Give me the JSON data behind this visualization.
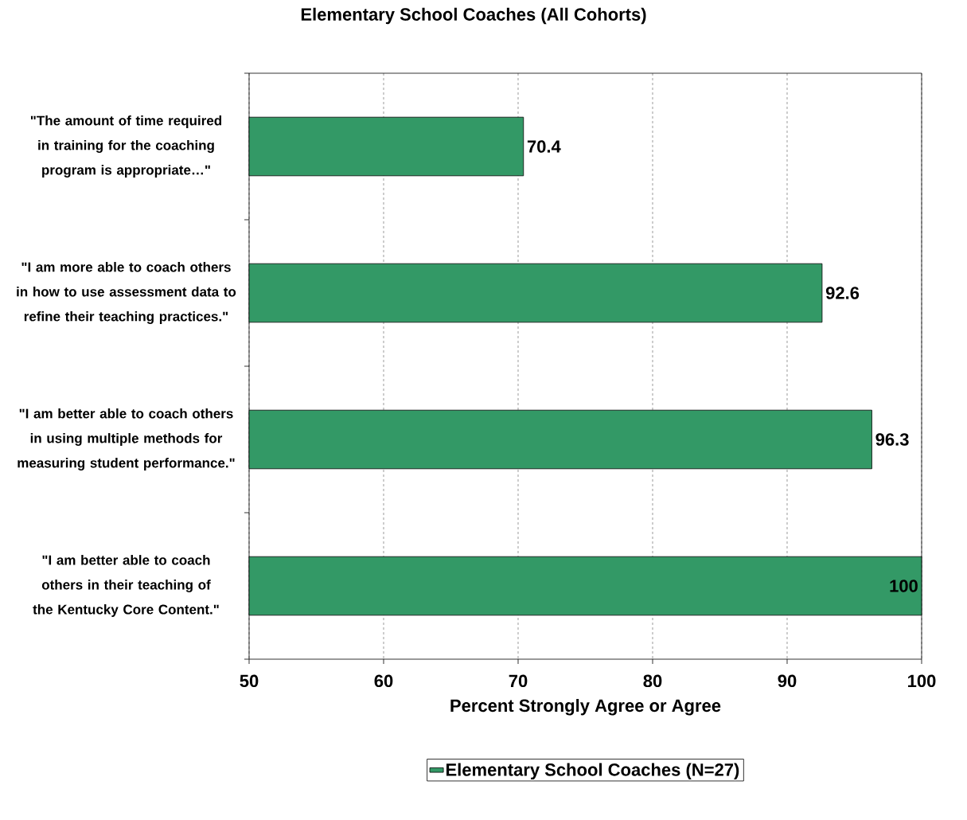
{
  "chart_data": {
    "type": "bar",
    "orientation": "horizontal",
    "title": "Elementary School Coaches (All Cohorts)",
    "xlabel": "Percent Strongly Agree or Agree",
    "categories": [
      "\"The amount of time required in training for the coaching program is appropriate…\"",
      "\"I am more able to coach others in how to use assessment data to refine their teaching practices.\"",
      "\"I am better able to coach others in using multiple methods for measuring student performance.\"",
      "\"I am better able to coach others in their teaching of the Kentucky Core Content.\""
    ],
    "series": [
      {
        "name": "Elementary School Coaches (N=27)",
        "color": "#339966",
        "values": [
          70.4,
          92.6,
          96.3,
          100
        ]
      }
    ],
    "xlim": [
      50,
      100
    ],
    "xticks": [
      50,
      60,
      70,
      80,
      90,
      100
    ],
    "grid": "x",
    "legend": "bottom",
    "data_labels": true
  }
}
